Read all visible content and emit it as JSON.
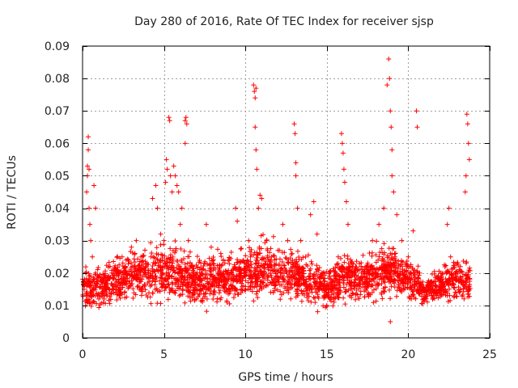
{
  "chart_data": {
    "type": "scatter",
    "title": "Day 280 of 2016, Rate Of TEC Index for receiver sjsp",
    "xlabel": "GPS time / hours",
    "ylabel": "ROTI / TECUs",
    "xlim": [
      0,
      25
    ],
    "ylim": [
      0,
      0.09
    ],
    "xticks": [
      "0",
      "5",
      "10",
      "15",
      "20",
      "25"
    ],
    "yticks": [
      "0",
      "0.01",
      "0.02",
      "0.03",
      "0.04",
      "0.05",
      "0.06",
      "0.07",
      "0.08",
      "0.09"
    ],
    "grid": true,
    "marker": "+",
    "color": "#ff0000",
    "series": [
      {
        "name": "ROTI",
        "points": [
          [
            0.1,
            0.015
          ],
          [
            0.2,
            0.02
          ],
          [
            0.25,
            0.045
          ],
          [
            0.3,
            0.05
          ],
          [
            0.3,
            0.053
          ],
          [
            0.35,
            0.062
          ],
          [
            0.35,
            0.058
          ],
          [
            0.4,
            0.052
          ],
          [
            0.4,
            0.04
          ],
          [
            0.45,
            0.035
          ],
          [
            0.5,
            0.03
          ],
          [
            0.6,
            0.025
          ],
          [
            0.7,
            0.047
          ],
          [
            0.8,
            0.04
          ],
          [
            0.8,
            0.02
          ],
          [
            1.0,
            0.012
          ],
          [
            1.2,
            0.018
          ],
          [
            1.5,
            0.013
          ],
          [
            1.8,
            0.02
          ],
          [
            2.2,
            0.015
          ],
          [
            2.6,
            0.022
          ],
          [
            3.0,
            0.028
          ],
          [
            3.3,
            0.03
          ],
          [
            3.8,
            0.02
          ],
          [
            4.2,
            0.025
          ],
          [
            4.3,
            0.043
          ],
          [
            4.5,
            0.047
          ],
          [
            4.6,
            0.04
          ],
          [
            4.8,
            0.032
          ],
          [
            5.0,
            0.03
          ],
          [
            5.1,
            0.048
          ],
          [
            5.15,
            0.055
          ],
          [
            5.2,
            0.052
          ],
          [
            5.3,
            0.068
          ],
          [
            5.35,
            0.067
          ],
          [
            5.4,
            0.05
          ],
          [
            5.5,
            0.045
          ],
          [
            5.6,
            0.053
          ],
          [
            5.7,
            0.05
          ],
          [
            5.8,
            0.047
          ],
          [
            5.9,
            0.045
          ],
          [
            6.0,
            0.035
          ],
          [
            6.1,
            0.04
          ],
          [
            6.3,
            0.067
          ],
          [
            6.35,
            0.068
          ],
          [
            6.4,
            0.066
          ],
          [
            6.3,
            0.06
          ],
          [
            6.5,
            0.03
          ],
          [
            6.8,
            0.02
          ],
          [
            7.0,
            0.012
          ],
          [
            7.3,
            0.02
          ],
          [
            7.6,
            0.035
          ],
          [
            7.9,
            0.028
          ],
          [
            8.5,
            0.018
          ],
          [
            9.0,
            0.024
          ],
          [
            9.4,
            0.04
          ],
          [
            9.5,
            0.036
          ],
          [
            10.0,
            0.02
          ],
          [
            10.2,
            0.03
          ],
          [
            10.5,
            0.078
          ],
          [
            10.55,
            0.076
          ],
          [
            10.6,
            0.074
          ],
          [
            10.65,
            0.077
          ],
          [
            10.6,
            0.065
          ],
          [
            10.65,
            0.058
          ],
          [
            10.7,
            0.052
          ],
          [
            10.8,
            0.04
          ],
          [
            10.9,
            0.044
          ],
          [
            11.0,
            0.043
          ],
          [
            11.3,
            0.03
          ],
          [
            11.6,
            0.025
          ],
          [
            12.0,
            0.027
          ],
          [
            12.3,
            0.035
          ],
          [
            12.6,
            0.03
          ],
          [
            13.0,
            0.066
          ],
          [
            13.05,
            0.063
          ],
          [
            13.1,
            0.054
          ],
          [
            13.1,
            0.05
          ],
          [
            13.2,
            0.04
          ],
          [
            13.4,
            0.03
          ],
          [
            13.7,
            0.025
          ],
          [
            14.0,
            0.038
          ],
          [
            14.2,
            0.042
          ],
          [
            14.4,
            0.032
          ],
          [
            14.7,
            0.02
          ],
          [
            15.0,
            0.01
          ],
          [
            15.3,
            0.015
          ],
          [
            15.7,
            0.025
          ],
          [
            15.9,
            0.063
          ],
          [
            15.95,
            0.06
          ],
          [
            16.0,
            0.057
          ],
          [
            16.05,
            0.052
          ],
          [
            16.1,
            0.048
          ],
          [
            16.2,
            0.042
          ],
          [
            16.3,
            0.035
          ],
          [
            16.5,
            0.022
          ],
          [
            17.0,
            0.018
          ],
          [
            17.5,
            0.02
          ],
          [
            17.8,
            0.03
          ],
          [
            18.2,
            0.035
          ],
          [
            18.5,
            0.04
          ],
          [
            18.7,
            0.078
          ],
          [
            18.8,
            0.086
          ],
          [
            18.85,
            0.08
          ],
          [
            18.9,
            0.07
          ],
          [
            18.95,
            0.065
          ],
          [
            19.0,
            0.058
          ],
          [
            19.0,
            0.05
          ],
          [
            19.1,
            0.045
          ],
          [
            19.3,
            0.038
          ],
          [
            18.9,
            0.005
          ],
          [
            19.6,
            0.03
          ],
          [
            20.0,
            0.025
          ],
          [
            20.3,
            0.033
          ],
          [
            20.5,
            0.07
          ],
          [
            20.55,
            0.065
          ],
          [
            20.7,
            0.02
          ],
          [
            21.0,
            0.012
          ],
          [
            21.5,
            0.015
          ],
          [
            22.0,
            0.02
          ],
          [
            22.4,
            0.035
          ],
          [
            22.5,
            0.04
          ],
          [
            22.6,
            0.025
          ],
          [
            22.9,
            0.018
          ],
          [
            23.2,
            0.022
          ],
          [
            23.5,
            0.045
          ],
          [
            23.55,
            0.05
          ],
          [
            23.6,
            0.069
          ],
          [
            23.65,
            0.066
          ],
          [
            23.7,
            0.06
          ],
          [
            23.75,
            0.055
          ],
          [
            23.7,
            0.015
          ]
        ]
      }
    ],
    "band": {
      "note": "dense noise floor of ROTI values across the whole day",
      "envelope": [
        [
          0,
          0.008,
          0.022
        ],
        [
          1,
          0.007,
          0.025
        ],
        [
          2,
          0.009,
          0.027
        ],
        [
          3,
          0.009,
          0.029
        ],
        [
          4,
          0.008,
          0.031
        ],
        [
          5,
          0.01,
          0.032
        ],
        [
          6,
          0.008,
          0.031
        ],
        [
          7,
          0.006,
          0.028
        ],
        [
          8,
          0.008,
          0.029
        ],
        [
          9,
          0.008,
          0.03
        ],
        [
          10,
          0.009,
          0.032
        ],
        [
          11,
          0.009,
          0.033
        ],
        [
          12,
          0.01,
          0.031
        ],
        [
          13,
          0.01,
          0.03
        ],
        [
          14,
          0.008,
          0.027
        ],
        [
          15,
          0.007,
          0.024
        ],
        [
          16,
          0.009,
          0.028
        ],
        [
          17,
          0.009,
          0.027
        ],
        [
          18,
          0.009,
          0.031
        ],
        [
          19,
          0.01,
          0.033
        ],
        [
          20,
          0.009,
          0.028
        ],
        [
          21,
          0.008,
          0.02
        ],
        [
          22,
          0.009,
          0.023
        ],
        [
          23,
          0.009,
          0.027
        ],
        [
          23.8,
          0.01,
          0.025
        ]
      ]
    }
  }
}
